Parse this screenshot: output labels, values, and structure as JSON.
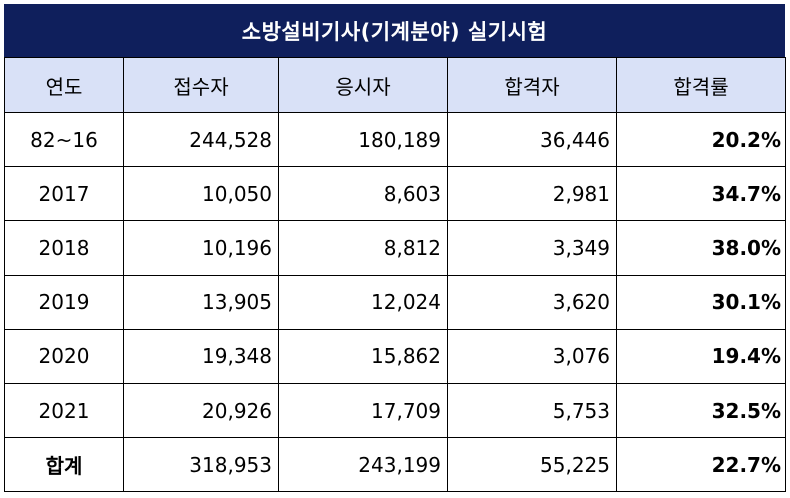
{
  "title": "소방설비기사(기계분야) 실기시험",
  "headers": [
    "연도",
    "접수자",
    "응시자",
    "합격자",
    "합격률"
  ],
  "rows": [
    [
      "82~16",
      "244,528",
      "180,189",
      "36,446",
      "20.2%"
    ],
    [
      "2017",
      "10,050",
      "8,603",
      "2,981",
      "34.7%"
    ],
    [
      "2018",
      "10,196",
      "8,812",
      "3,349",
      "38.0%"
    ],
    [
      "2019",
      "13,905",
      "12,024",
      "3,620",
      "30.1%"
    ],
    [
      "2020",
      "19,348",
      "15,862",
      "3,076",
      "19.4%"
    ],
    [
      "2021",
      "20,926",
      "17,709",
      "5,753",
      "32.5%"
    ],
    [
      "합계",
      "318,953",
      "243,199",
      "55,225",
      "22.7%"
    ]
  ],
  "colors": {
    "title_bg": "#0f1f5c",
    "header_bg": "#d9e1f7"
  }
}
